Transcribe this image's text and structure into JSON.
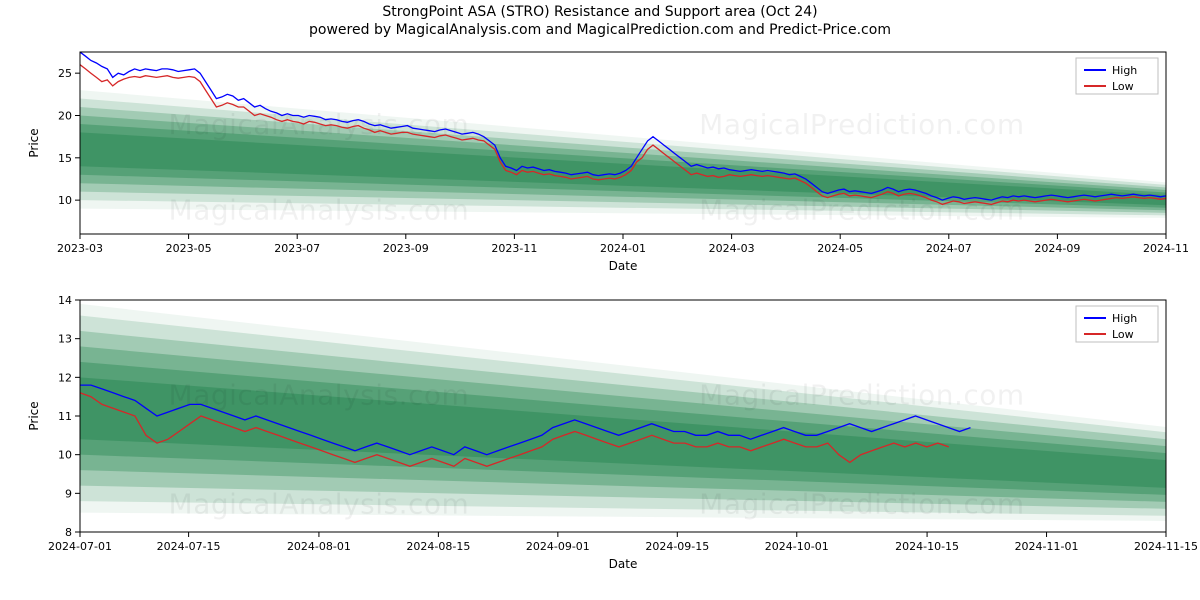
{
  "title": "StrongPoint ASA (STRO) Resistance and Support area (Oct 24)",
  "subtitle": "powered by MagicalAnalysis.com and MagicalPrediction.com and Predict-Price.com",
  "watermarks": [
    "MagicalAnalysis.com",
    "MagicalPrediction.com"
  ],
  "colors": {
    "high_line": "#0000ff",
    "low_line": "#d62728",
    "band_dark": "#2e8b57",
    "band_colors": [
      "#56a86e",
      "#6bb781",
      "#86c598",
      "#a2d4af",
      "#bde2c7",
      "#d8f0de"
    ],
    "band_opacity_min": 0.08,
    "band_opacity_max": 0.55,
    "axis": "#000000",
    "grid": "#e0e0e0",
    "background": "#ffffff",
    "legend_border": "#bfbfbf"
  },
  "legend": {
    "items": [
      {
        "label": "High",
        "color": "#0000ff"
      },
      {
        "label": "Low",
        "color": "#d62728"
      }
    ]
  },
  "chart1": {
    "type": "line_with_bands",
    "xlabel": "Date",
    "ylabel": "Price",
    "ylim": [
      6,
      27.5
    ],
    "yticks": [
      10,
      15,
      20,
      25
    ],
    "xlim": [
      0,
      440
    ],
    "xticks_idx": [
      0,
      44,
      88,
      132,
      176,
      220,
      264,
      308,
      352,
      396,
      440
    ],
    "xtick_labels": [
      "2023-03",
      "2023-05",
      "2023-07",
      "2023-09",
      "2023-11",
      "2024-01",
      "2024-03",
      "2024-05",
      "2024-07",
      "2024-09",
      "2024-11"
    ],
    "band_center": {
      "start": 16.0,
      "end": 10.0
    },
    "band_half_widths": [
      2.0,
      3.0,
      4.0,
      5.0,
      6.0,
      7.0
    ],
    "band_end_scale": 0.3,
    "high": [
      27.5,
      27.0,
      26.5,
      26.2,
      25.8,
      25.5,
      24.5,
      25.0,
      24.8,
      25.2,
      25.5,
      25.3,
      25.5,
      25.4,
      25.3,
      25.5,
      25.5,
      25.4,
      25.2,
      25.3,
      25.4,
      25.5,
      25.0,
      24.0,
      23.0,
      22.0,
      22.2,
      22.5,
      22.3,
      21.8,
      22.0,
      21.5,
      21.0,
      21.2,
      20.8,
      20.5,
      20.3,
      20.0,
      20.2,
      20.0,
      20.0,
      19.8,
      20.0,
      19.9,
      19.8,
      19.5,
      19.6,
      19.5,
      19.3,
      19.2,
      19.4,
      19.5,
      19.3,
      19.0,
      18.8,
      18.9,
      18.7,
      18.5,
      18.6,
      18.7,
      18.8,
      18.5,
      18.4,
      18.3,
      18.2,
      18.1,
      18.3,
      18.4,
      18.2,
      18.0,
      17.8,
      17.9,
      18.0,
      17.8,
      17.5,
      17.0,
      16.5,
      15.0,
      14.0,
      13.8,
      13.5,
      14.0,
      13.8,
      13.9,
      13.7,
      13.5,
      13.6,
      13.4,
      13.3,
      13.2,
      13.0,
      13.1,
      13.2,
      13.3,
      13.0,
      12.9,
      13.0,
      13.1,
      13.0,
      13.2,
      13.5,
      14.0,
      15.0,
      16.0,
      17.0,
      17.5,
      17.0,
      16.5,
      16.0,
      15.5,
      15.0,
      14.5,
      14.0,
      14.2,
      14.0,
      13.8,
      13.9,
      13.7,
      13.8,
      13.6,
      13.5,
      13.4,
      13.5,
      13.6,
      13.5,
      13.4,
      13.5,
      13.4,
      13.3,
      13.2,
      13.0,
      13.1,
      12.8,
      12.5,
      12.0,
      11.5,
      11.0,
      10.8,
      11.0,
      11.2,
      11.3,
      11.0,
      11.1,
      11.0,
      10.9,
      10.8,
      11.0,
      11.2,
      11.5,
      11.3,
      11.0,
      11.2,
      11.3,
      11.2,
      11.0,
      10.8,
      10.5,
      10.3,
      10.0,
      10.2,
      10.4,
      10.3,
      10.1,
      10.2,
      10.3,
      10.2,
      10.1,
      10.0,
      10.2,
      10.4,
      10.3,
      10.5,
      10.4,
      10.5,
      10.4,
      10.3,
      10.4,
      10.5,
      10.6,
      10.5,
      10.4,
      10.3,
      10.4,
      10.5,
      10.6,
      10.5,
      10.4,
      10.5,
      10.6,
      10.7,
      10.6,
      10.5,
      10.6,
      10.7,
      10.6,
      10.5,
      10.6,
      10.5,
      10.4,
      10.5
    ],
    "low": [
      26.0,
      25.5,
      25.0,
      24.5,
      24.0,
      24.2,
      23.5,
      24.0,
      24.3,
      24.5,
      24.6,
      24.5,
      24.7,
      24.6,
      24.5,
      24.6,
      24.7,
      24.5,
      24.4,
      24.5,
      24.6,
      24.5,
      24.0,
      23.0,
      22.0,
      21.0,
      21.2,
      21.5,
      21.3,
      21.0,
      21.0,
      20.5,
      20.0,
      20.2,
      20.0,
      19.8,
      19.5,
      19.3,
      19.5,
      19.3,
      19.2,
      19.0,
      19.3,
      19.2,
      19.0,
      18.8,
      18.9,
      18.8,
      18.6,
      18.5,
      18.7,
      18.8,
      18.5,
      18.3,
      18.0,
      18.2,
      18.0,
      17.8,
      17.9,
      18.0,
      18.0,
      17.8,
      17.7,
      17.6,
      17.5,
      17.4,
      17.6,
      17.7,
      17.5,
      17.3,
      17.1,
      17.2,
      17.3,
      17.1,
      17.0,
      16.5,
      16.0,
      14.5,
      13.5,
      13.3,
      13.0,
      13.5,
      13.3,
      13.4,
      13.2,
      13.0,
      13.1,
      12.9,
      12.8,
      12.7,
      12.5,
      12.6,
      12.7,
      12.8,
      12.5,
      12.4,
      12.5,
      12.6,
      12.5,
      12.7,
      13.0,
      13.5,
      14.5,
      15.0,
      16.0,
      16.5,
      16.0,
      15.5,
      15.0,
      14.5,
      14.0,
      13.5,
      13.0,
      13.2,
      13.0,
      12.8,
      12.9,
      12.7,
      12.8,
      13.0,
      12.9,
      12.8,
      12.9,
      13.0,
      12.9,
      12.8,
      12.9,
      12.8,
      12.7,
      12.6,
      12.5,
      12.6,
      12.3,
      12.0,
      11.5,
      11.0,
      10.5,
      10.3,
      10.5,
      10.7,
      10.8,
      10.5,
      10.6,
      10.5,
      10.4,
      10.3,
      10.5,
      10.7,
      11.0,
      10.8,
      10.5,
      10.7,
      10.8,
      10.7,
      10.5,
      10.3,
      10.0,
      9.8,
      9.5,
      9.7,
      9.9,
      9.8,
      9.6,
      9.7,
      9.8,
      9.7,
      9.6,
      9.5,
      9.7,
      9.9,
      9.8,
      10.0,
      9.9,
      10.0,
      9.9,
      9.8,
      9.9,
      10.0,
      10.1,
      10.0,
      9.9,
      9.8,
      9.9,
      10.0,
      10.1,
      10.0,
      9.9,
      10.0,
      10.1,
      10.2,
      10.3,
      10.2,
      10.3,
      10.4,
      10.3,
      10.2,
      10.3,
      10.2,
      10.1,
      10.2
    ],
    "n_points": 200,
    "line_width": 1.3
  },
  "chart2": {
    "type": "line_with_bands",
    "xlabel": "Date",
    "ylabel": "Price",
    "ylim": [
      8,
      14
    ],
    "yticks": [
      8,
      9,
      10,
      11,
      12,
      13,
      14
    ],
    "xlim": [
      0,
      100
    ],
    "xticks_idx": [
      0,
      10,
      22,
      33,
      44,
      55,
      66,
      78,
      89,
      100
    ],
    "xtick_labels": [
      "2024-07-01",
      "2024-07-15",
      "2024-08-01",
      "2024-08-15",
      "2024-09-01",
      "2024-09-15",
      "2024-10-01",
      "2024-10-15",
      "2024-11-01",
      "2024-11-15"
    ],
    "band_center": {
      "start": 11.2,
      "end": 9.5
    },
    "band_half_widths": [
      0.8,
      1.2,
      1.6,
      2.0,
      2.4,
      2.7
    ],
    "band_end_scale": 0.45,
    "high": [
      11.8,
      11.8,
      11.7,
      11.6,
      11.5,
      11.4,
      11.2,
      11.0,
      11.1,
      11.2,
      11.3,
      11.3,
      11.2,
      11.1,
      11.0,
      10.9,
      11.0,
      10.9,
      10.8,
      10.7,
      10.6,
      10.5,
      10.4,
      10.3,
      10.2,
      10.1,
      10.2,
      10.3,
      10.2,
      10.1,
      10.0,
      10.1,
      10.2,
      10.1,
      10.0,
      10.2,
      10.1,
      10.0,
      10.1,
      10.2,
      10.3,
      10.4,
      10.5,
      10.7,
      10.8,
      10.9,
      10.8,
      10.7,
      10.6,
      10.5,
      10.6,
      10.7,
      10.8,
      10.7,
      10.6,
      10.6,
      10.5,
      10.5,
      10.6,
      10.5,
      10.5,
      10.4,
      10.5,
      10.6,
      10.7,
      10.6,
      10.5,
      10.5,
      10.6,
      10.7,
      10.8,
      10.7,
      10.6,
      10.7,
      10.8,
      10.9,
      11.0,
      10.9,
      10.8,
      10.7,
      10.6,
      10.7
    ],
    "low": [
      11.6,
      11.5,
      11.3,
      11.2,
      11.1,
      11.0,
      10.5,
      10.3,
      10.4,
      10.6,
      10.8,
      11.0,
      10.9,
      10.8,
      10.7,
      10.6,
      10.7,
      10.6,
      10.5,
      10.4,
      10.3,
      10.2,
      10.1,
      10.0,
      9.9,
      9.8,
      9.9,
      10.0,
      9.9,
      9.8,
      9.7,
      9.8,
      9.9,
      9.8,
      9.7,
      9.9,
      9.8,
      9.7,
      9.8,
      9.9,
      10.0,
      10.1,
      10.2,
      10.4,
      10.5,
      10.6,
      10.5,
      10.4,
      10.3,
      10.2,
      10.3,
      10.4,
      10.5,
      10.4,
      10.3,
      10.3,
      10.2,
      10.2,
      10.3,
      10.2,
      10.2,
      10.1,
      10.2,
      10.3,
      10.4,
      10.3,
      10.2,
      10.2,
      10.3,
      10.0,
      9.8,
      10.0,
      10.1,
      10.2,
      10.3,
      10.2,
      10.3,
      10.2,
      10.3,
      10.2
    ],
    "n_points_high": 82,
    "n_points_low": 80,
    "line_width": 1.3
  }
}
